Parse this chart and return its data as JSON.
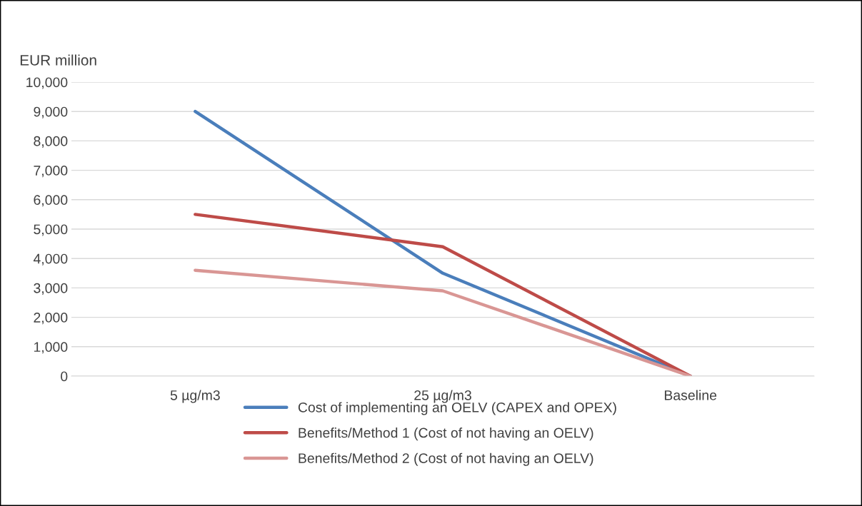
{
  "chart_data": {
    "type": "line",
    "ylabel": "EUR million",
    "categories": [
      "5 µg/m3",
      "25 µg/m3",
      "Baseline"
    ],
    "series": [
      {
        "name": "Cost of implementing an OELV (CAPEX and OPEX)",
        "color": "#4a7ebb",
        "values": [
          9000,
          3500,
          0
        ]
      },
      {
        "name": "Benefits/Method 1 (Cost of not having an OELV)",
        "color": "#be4b48",
        "values": [
          5500,
          4400,
          0
        ]
      },
      {
        "name": "Benefits/Method 2 (Cost of not having an OELV)",
        "color": "#d99694",
        "values": [
          3600,
          2900,
          0
        ]
      }
    ],
    "ylim": [
      0,
      10000
    ],
    "yticks": [
      {
        "value": 0,
        "label": "0"
      },
      {
        "value": 1000,
        "label": "1,000"
      },
      {
        "value": 2000,
        "label": "2,000"
      },
      {
        "value": 3000,
        "label": "3,000"
      },
      {
        "value": 4000,
        "label": "4,000"
      },
      {
        "value": 5000,
        "label": "5,000"
      },
      {
        "value": 6000,
        "label": "6,000"
      },
      {
        "value": 7000,
        "label": "7,000"
      },
      {
        "value": 8000,
        "label": "8,000"
      },
      {
        "value": 9000,
        "label": "9,000"
      },
      {
        "value": 10000,
        "label": "10,000"
      }
    ],
    "grid": "y",
    "legend": "bottom",
    "marker": "none",
    "line_style": "solid"
  }
}
